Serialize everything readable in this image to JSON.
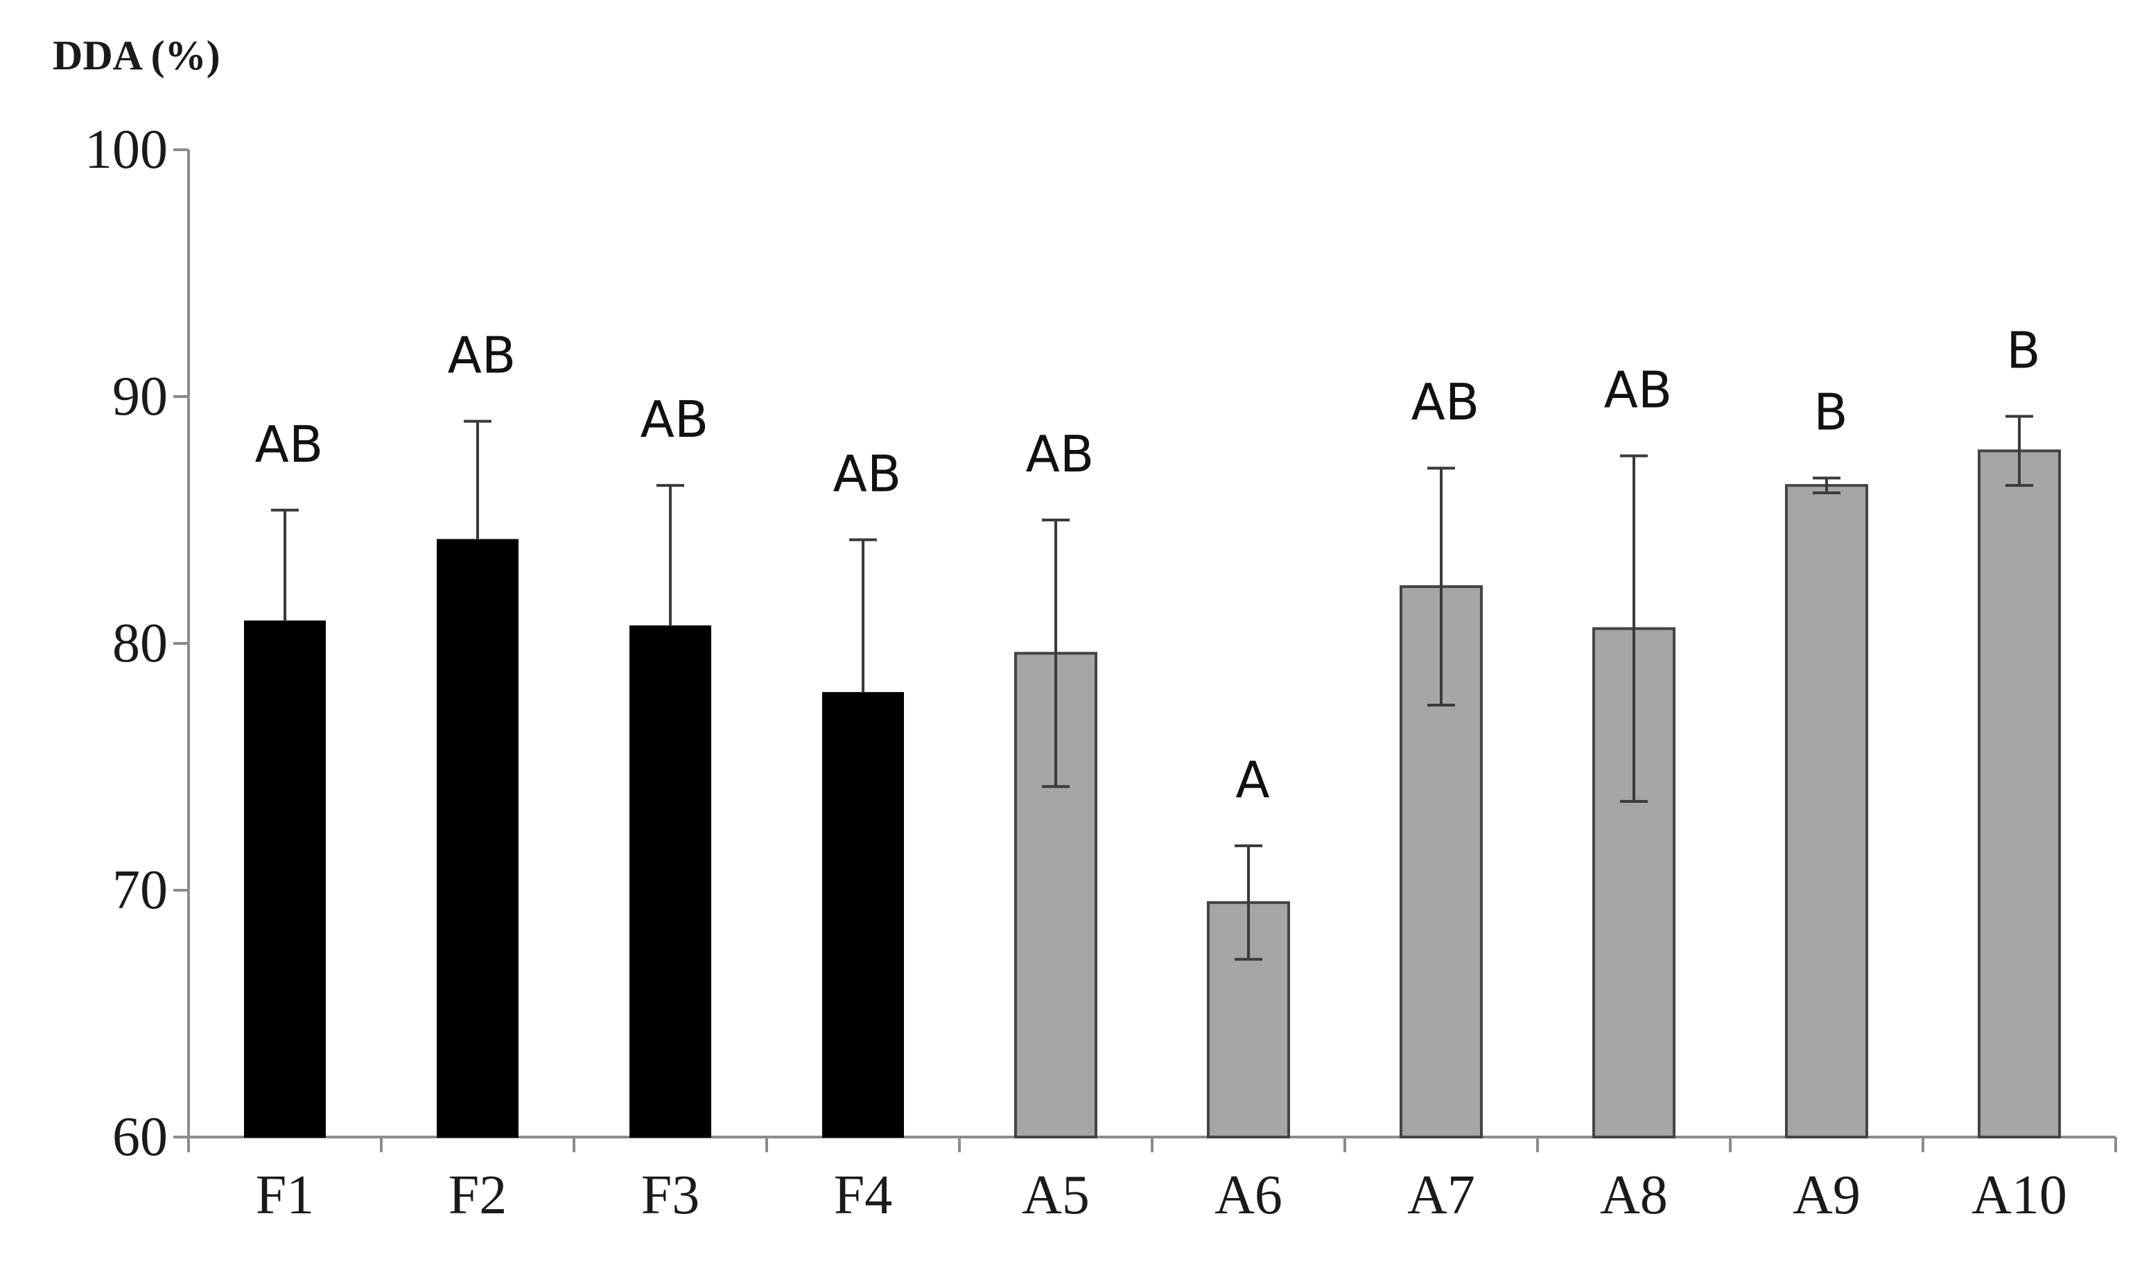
{
  "chart_data": {
    "type": "bar",
    "title": "",
    "xlabel": "",
    "ylabel": "DDA (%)",
    "ylim": [
      60,
      100
    ],
    "yticks": [
      60,
      70,
      80,
      90,
      100
    ],
    "grid": false,
    "categories": [
      "F1",
      "F2",
      "F3",
      "F4",
      "A5",
      "A6",
      "A7",
      "A8",
      "A9",
      "A10"
    ],
    "values": [
      80.9,
      84.2,
      80.7,
      78.0,
      79.6,
      69.5,
      82.3,
      80.6,
      86.4,
      87.8
    ],
    "errors": [
      4.5,
      4.8,
      5.7,
      6.2,
      5.4,
      2.3,
      4.8,
      7.0,
      0.3,
      1.4
    ],
    "significance": [
      "AB",
      "AB",
      "AB",
      "AB",
      "AB",
      "A",
      "AB",
      "AB",
      "B",
      "B"
    ],
    "groups": [
      {
        "name": "F",
        "categories": [
          "F1",
          "F2",
          "F3",
          "F4"
        ],
        "color": "#000000"
      },
      {
        "name": "A",
        "categories": [
          "A5",
          "A6",
          "A7",
          "A8",
          "A9",
          "A10"
        ],
        "color": "#a6a6a6"
      }
    ],
    "colors": {
      "F": "#000000",
      "A": "#a6a6a6",
      "axis": "#8c8c8c",
      "error": "#3a3a3a",
      "bar_edge": "#444444"
    }
  }
}
